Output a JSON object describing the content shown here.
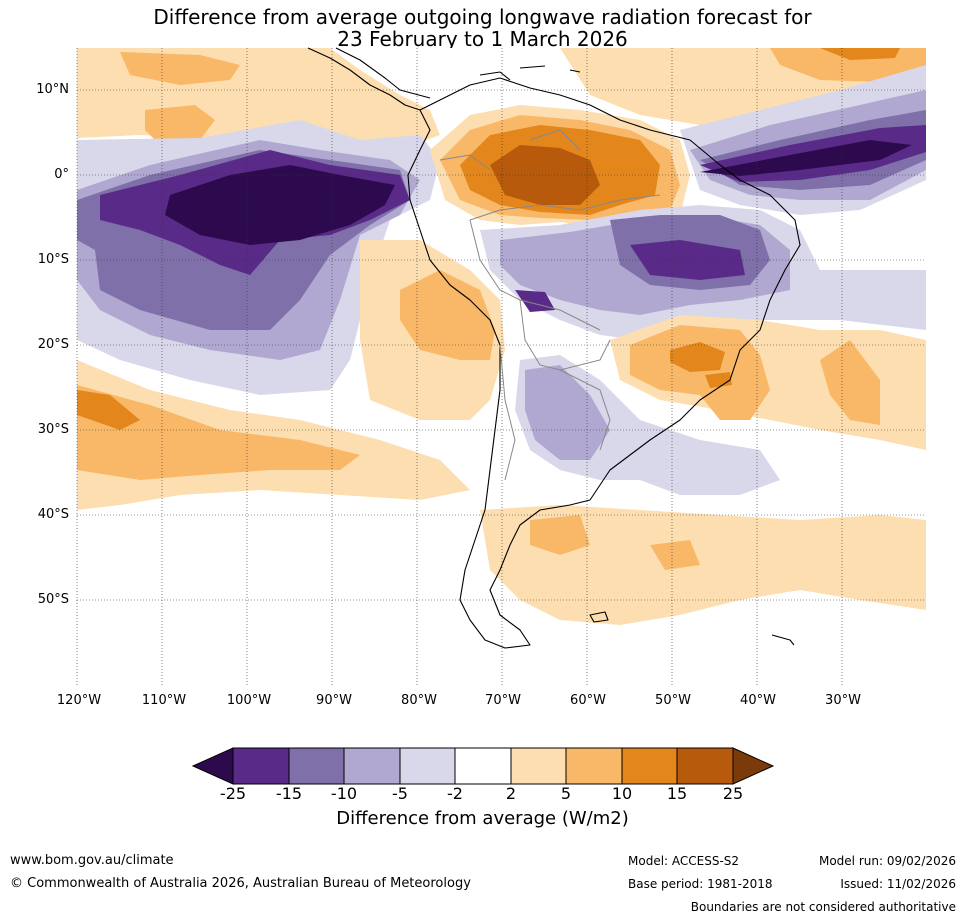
{
  "title": {
    "line1": "Difference from average outgoing longwave radiation forecast for",
    "line2": "23 February to 1 March 2026"
  },
  "map": {
    "lat_labels": [
      "10°N",
      "0°",
      "10°S",
      "20°S",
      "30°S",
      "40°S",
      "50°S"
    ],
    "lon_labels": [
      "120°W",
      "110°W",
      "100°W",
      "90°W",
      "80°W",
      "70°W",
      "60°W",
      "50°W",
      "40°W",
      "30°W"
    ]
  },
  "colorbar": {
    "ticks": [
      "-25",
      "-15",
      "-10",
      "-5",
      "-2",
      "2",
      "5",
      "10",
      "15",
      "25"
    ],
    "colors": [
      "#2d0a4e",
      "#5a2a88",
      "#8070aa",
      "#b0a8d0",
      "#d8d8ea",
      "#ffffff",
      "#fddeb0",
      "#f9b868",
      "#e3861c",
      "#b85a0c",
      "#7a3a0a"
    ],
    "label": "Difference from average (W/m2)"
  },
  "footer": {
    "website": "www.bom.gov.au/climate",
    "copyright": "© Commonwealth of Australia 2026, Australian Bureau of Meteorology",
    "model": "Model: ACCESS-S2",
    "base_period": "Base period: 1981-2018",
    "model_run": "Model run: 09/02/2026",
    "issued": "Issued: 11/02/2026",
    "disclaimer": "Boundaries are not considered authoritative"
  }
}
